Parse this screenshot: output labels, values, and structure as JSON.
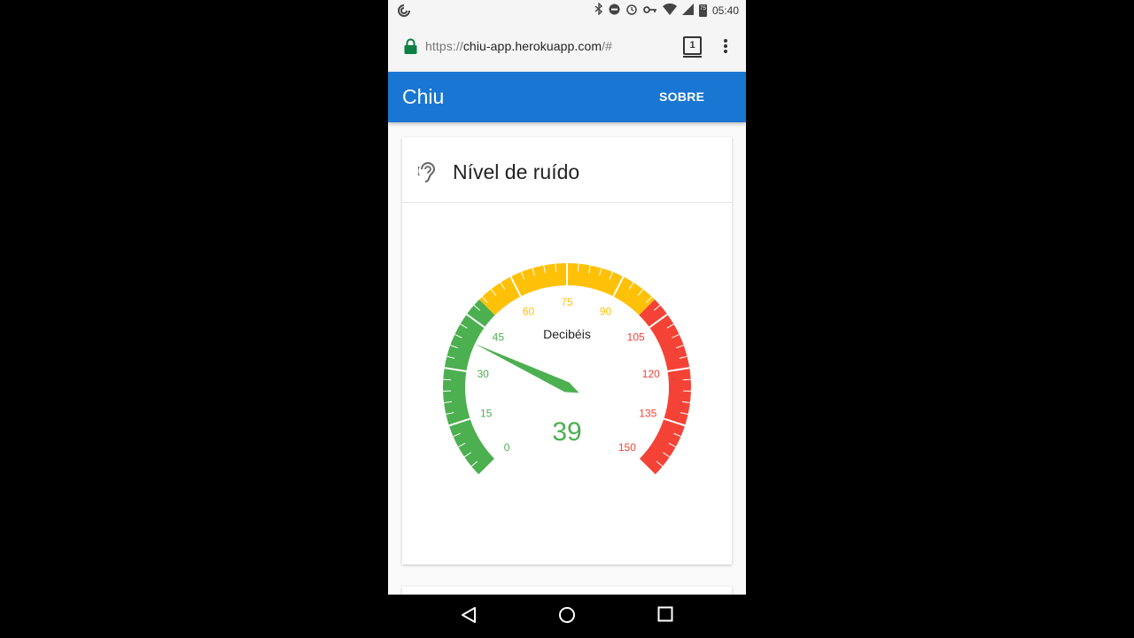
{
  "status_bar": {
    "time": "05:40",
    "battery": "75"
  },
  "browser": {
    "url_prefix": "https://",
    "url_domain": "chiu-app.herokuapp.com",
    "url_suffix": "/#",
    "tab_count": "1"
  },
  "app_bar": {
    "title": "Chiu",
    "about_label": "SOBRE"
  },
  "card": {
    "title": "Nível de ruído"
  },
  "gauge": {
    "unit_label": "Decibéis",
    "value": 39,
    "value_text": "39",
    "min": 0,
    "max": 150,
    "major_ticks": [
      "0",
      "15",
      "30",
      "45",
      "60",
      "75",
      "90",
      "105",
      "120",
      "135",
      "150"
    ],
    "bands": [
      {
        "from": 0,
        "to": 50,
        "color": "#4caf50"
      },
      {
        "from": 50,
        "to": 100,
        "color": "#ffc107"
      },
      {
        "from": 100,
        "to": 150,
        "color": "#f44336"
      }
    ],
    "needle_color": "#4caf50"
  }
}
